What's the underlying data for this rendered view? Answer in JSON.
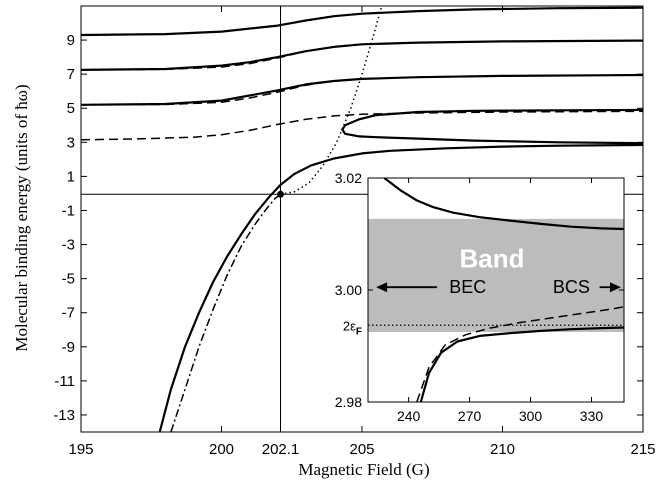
{
  "chart_data": [
    {
      "type": "line",
      "xlabel": "Magnetic Field (G)",
      "ylabel": "Molecular binding energy (units of ħω)",
      "xlim": [
        195,
        215
      ],
      "ylim": [
        -14,
        11
      ],
      "x_ticks": [
        195,
        200,
        202.1,
        205,
        210,
        215
      ],
      "y_ticks": [
        9,
        7,
        5,
        3,
        1,
        -1,
        -3,
        -5,
        -7,
        -9,
        -11,
        -13
      ],
      "reference_lines": {
        "vertical_x": 202.1,
        "horizontal_y": -0.05
      },
      "marker_point": {
        "x": 202.1,
        "y": -0.05
      },
      "series": [
        {
          "style": "solid",
          "x": [
            195,
            198,
            200,
            202,
            203,
            204,
            205,
            207,
            209,
            212,
            215
          ],
          "y": [
            9.3,
            9.35,
            9.5,
            9.85,
            10.15,
            10.4,
            10.55,
            10.7,
            10.8,
            10.87,
            10.9
          ]
        },
        {
          "style": "solid",
          "x": [
            195,
            198,
            200,
            201,
            202,
            203,
            204,
            205,
            207,
            210,
            215
          ],
          "y": [
            7.25,
            7.3,
            7.5,
            7.7,
            8.0,
            8.35,
            8.6,
            8.75,
            8.85,
            8.92,
            8.97
          ]
        },
        {
          "style": "dashed",
          "x": [
            195,
            198,
            200,
            201,
            202,
            203,
            204,
            205,
            207,
            210,
            215
          ],
          "y": [
            7.25,
            7.28,
            7.42,
            7.62,
            7.95,
            8.35,
            8.6,
            8.75,
            8.85,
            8.92,
            8.97
          ]
        },
        {
          "style": "solid",
          "x": [
            195,
            198,
            200,
            201,
            202,
            203,
            204,
            205,
            207,
            210,
            215
          ],
          "y": [
            5.2,
            5.25,
            5.45,
            5.75,
            6.05,
            6.4,
            6.6,
            6.72,
            6.82,
            6.9,
            6.95
          ]
        },
        {
          "style": "dashed",
          "x": [
            195,
            198,
            200,
            201,
            202,
            203,
            204,
            205,
            207,
            210,
            215
          ],
          "y": [
            5.2,
            5.22,
            5.35,
            5.6,
            5.95,
            6.35,
            6.6,
            6.72,
            6.82,
            6.9,
            6.95
          ]
        },
        {
          "style": "dashed",
          "x": [
            195,
            197,
            199,
            200,
            201,
            202,
            203,
            204,
            205,
            207,
            210,
            215
          ],
          "y": [
            3.15,
            3.2,
            3.3,
            3.45,
            3.7,
            4.05,
            4.35,
            4.55,
            4.65,
            4.72,
            4.78,
            4.82
          ]
        },
        {
          "style": "solid",
          "x": [
            215,
            212,
            209,
            207,
            205.5,
            204.9,
            204.4,
            204.3,
            204.4,
            204.9,
            205.5,
            207,
            209,
            212,
            215
          ],
          "y": [
            4.9,
            4.88,
            4.85,
            4.78,
            4.6,
            4.35,
            4.0,
            3.75,
            3.5,
            3.35,
            3.3,
            3.22,
            3.1,
            3.0,
            2.95
          ]
        },
        {
          "style": "solid",
          "x": [
            197.8,
            198.2,
            198.7,
            199.2,
            199.7,
            200.2,
            200.7,
            201.2,
            201.7,
            202.1,
            202.6,
            203.2,
            204,
            205,
            206,
            208,
            210,
            212,
            215
          ],
          "y": [
            -14,
            -11.5,
            -9,
            -7,
            -5.2,
            -3.7,
            -2.4,
            -1.2,
            -0.2,
            0.5,
            1.15,
            1.65,
            2.05,
            2.35,
            2.5,
            2.65,
            2.75,
            2.8,
            2.85
          ]
        },
        {
          "style": "dashdot",
          "x": [
            198.2,
            198.7,
            199.2,
            199.7,
            200.2,
            200.7,
            201.2,
            201.6,
            201.9,
            202.1
          ],
          "y": [
            -14,
            -11.5,
            -9,
            -6.8,
            -4.8,
            -3.1,
            -1.8,
            -0.9,
            -0.3,
            -0.05
          ]
        },
        {
          "style": "dotted",
          "x": [
            202.1,
            202.6,
            203.1,
            203.6,
            204.1,
            204.6,
            205.0,
            205.4,
            205.7
          ],
          "y": [
            -0.05,
            0.1,
            0.6,
            1.6,
            3.0,
            5.0,
            7.0,
            9.2,
            11
          ]
        }
      ]
    },
    {
      "type": "line",
      "title": "",
      "x_ticks": [
        240,
        270,
        300,
        330
      ],
      "y_ticks": [
        "3.00",
        "2.98"
      ],
      "y_top_label": "3.02",
      "xlim": [
        220,
        346
      ],
      "ylim": [
        2.98,
        3.02
      ],
      "band": {
        "label": "Band",
        "y_from": 2.9925,
        "y_to": 3.0127,
        "color": "#bcbcbc"
      },
      "reference_line": {
        "label": "2ε",
        "label_sub": "F",
        "y": 2.9937,
        "style": "dotted"
      },
      "annotations": {
        "left": "BEC",
        "right": "BCS"
      },
      "series": [
        {
          "style": "solid",
          "x": [
            228,
            236,
            244,
            252,
            262,
            275,
            290,
            305,
            320,
            335,
            346
          ],
          "y": [
            3.02,
            3.0178,
            3.016,
            3.0148,
            3.0138,
            3.013,
            3.0124,
            3.0118,
            3.0113,
            3.011,
            3.0109
          ]
        },
        {
          "style": "solid",
          "x": [
            246,
            250,
            256,
            264,
            275,
            290,
            305,
            320,
            335,
            346
          ],
          "y": [
            2.98,
            2.9852,
            2.9888,
            2.9908,
            2.9918,
            2.9923,
            2.9927,
            2.993,
            2.9932,
            2.9933
          ]
        },
        {
          "style": "dashed",
          "x": [
            244,
            250,
            258,
            268,
            280,
            295,
            310,
            325,
            340,
            346
          ],
          "y": [
            2.98,
            2.9862,
            2.9902,
            2.992,
            2.9932,
            2.9942,
            2.995,
            2.9958,
            2.9966,
            2.997
          ]
        }
      ]
    }
  ]
}
